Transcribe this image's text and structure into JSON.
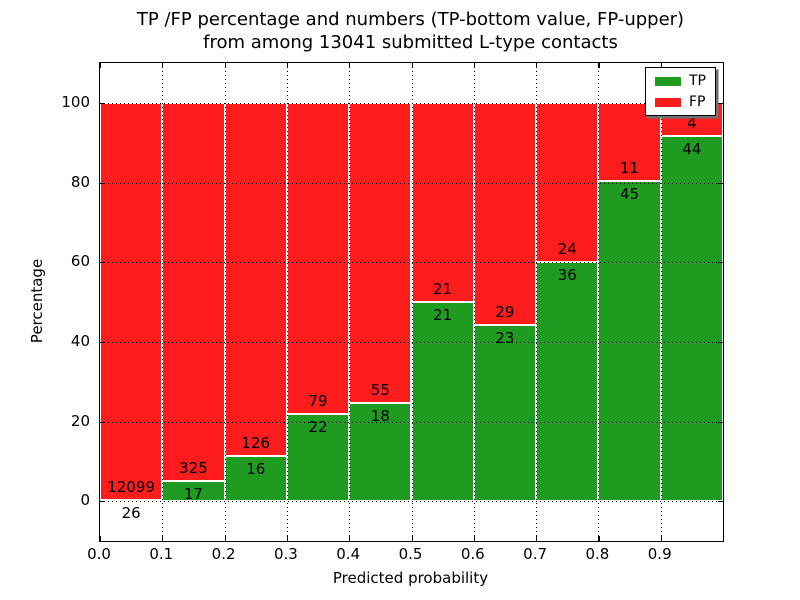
{
  "title": {
    "line1": "TP /FP percentage and numbers (TP-bottom value, FP-upper)",
    "line2": "from among 13041 submitted L-type contacts"
  },
  "legend": {
    "items": [
      {
        "label": "TP",
        "color": "#1f9b22"
      },
      {
        "label": "FP",
        "color": "#ff1c1c"
      }
    ]
  },
  "chart_data": {
    "type": "bar",
    "variant": "stacked-percentage",
    "title": "TP /FP percentage and numbers (TP-bottom value, FP-upper) from among 13041 submitted L-type contacts",
    "xlabel": "Predicted probability",
    "ylabel": "Percentage",
    "xlim": [
      0.0,
      1.0
    ],
    "ylim": [
      -10,
      110
    ],
    "xtick_labels": [
      "0.0",
      "0.1",
      "0.2",
      "0.3",
      "0.4",
      "0.5",
      "0.6",
      "0.7",
      "0.8",
      "0.9"
    ],
    "xtick_values": [
      0.0,
      0.1,
      0.2,
      0.3,
      0.4,
      0.5,
      0.6,
      0.7,
      0.8,
      0.9
    ],
    "ytick_labels": [
      "0",
      "20",
      "40",
      "60",
      "80",
      "100"
    ],
    "ytick_values": [
      0,
      20,
      40,
      60,
      80,
      100
    ],
    "grid": true,
    "grid_style": "dotted",
    "legend_position": "upper right",
    "bin_edges": [
      0.0,
      0.1,
      0.2,
      0.3,
      0.4,
      0.5,
      0.6,
      0.7,
      0.8,
      0.9,
      1.0
    ],
    "series": [
      {
        "name": "TP",
        "color": "#1f9b22",
        "counts": [
          26,
          17,
          16,
          22,
          18,
          21,
          23,
          36,
          45,
          44
        ]
      },
      {
        "name": "FP",
        "color": "#ff1c1c",
        "counts": [
          12099,
          325,
          126,
          79,
          55,
          21,
          29,
          24,
          11,
          4
        ]
      }
    ],
    "bar_edge_color": "#ffffff",
    "label_note": "TP count shown below the TP/FP boundary, FP count above it"
  }
}
